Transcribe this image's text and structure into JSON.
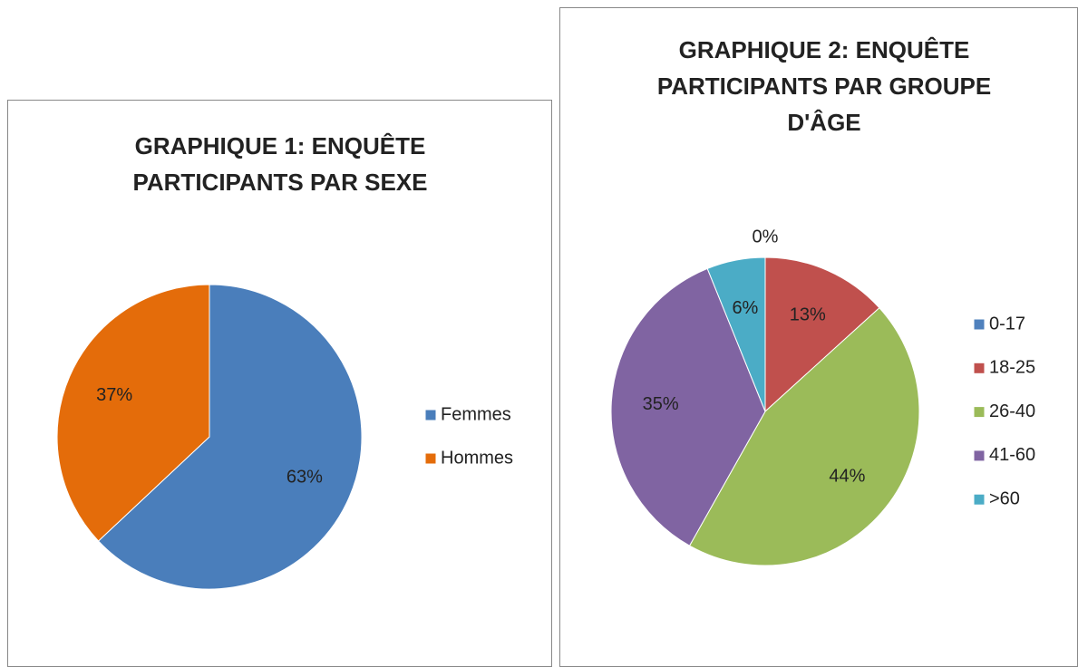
{
  "chart_data": [
    {
      "type": "pie",
      "title": "GRAPHIQUE 1: ENQUÊTE PARTICIPANTS PAR SEXE",
      "categories": [
        "Femmes",
        "Hommes"
      ],
      "values": [
        63,
        37
      ],
      "value_labels": [
        "63%",
        "37%"
      ],
      "colors": [
        "#4a7ebb",
        "#e46c0a"
      ],
      "legend": "right"
    },
    {
      "type": "pie",
      "title": "GRAPHIQUE 2: ENQUÊTE PARTICIPANTS PAR GROUPE D'ÂGE",
      "categories": [
        "0-17",
        "18-25",
        "26-40",
        "41-60",
        ">60"
      ],
      "values": [
        0,
        13,
        44,
        35,
        6
      ],
      "value_labels": [
        "0%",
        "13%",
        "44%",
        "35%",
        "6%"
      ],
      "colors": [
        "#4f81bd",
        "#c0504d",
        "#9bbb59",
        "#8064a2",
        "#4bacc6"
      ],
      "legend": "right"
    }
  ]
}
